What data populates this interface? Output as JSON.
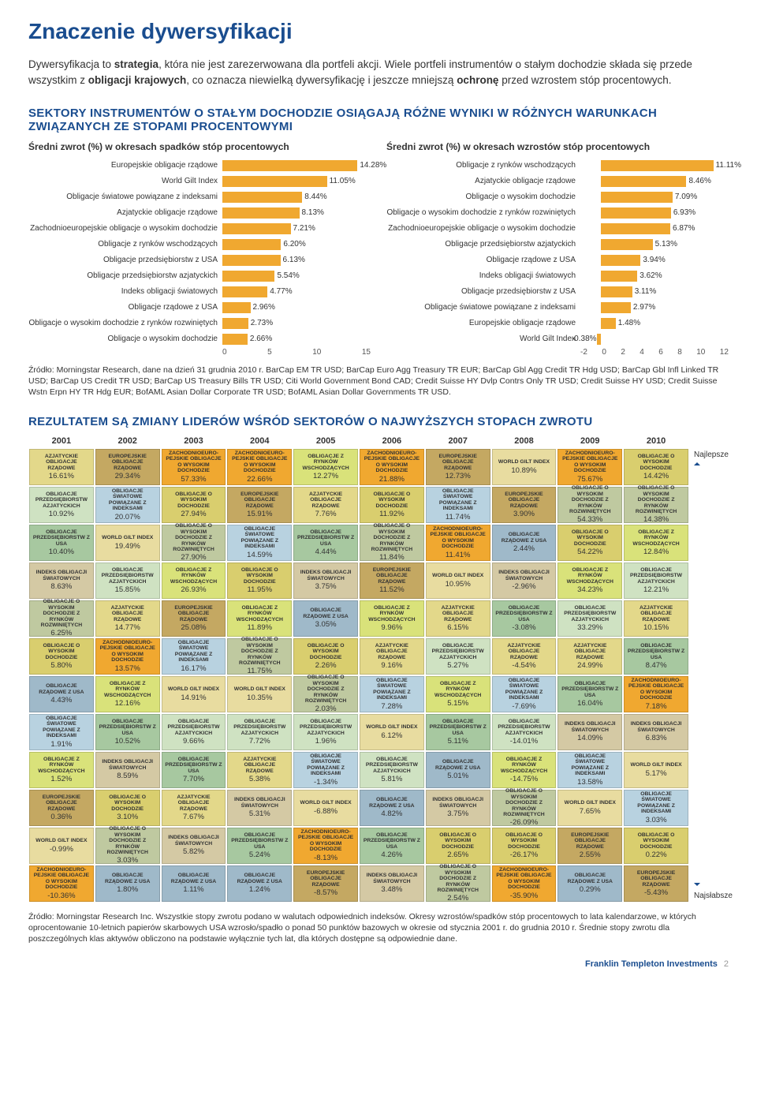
{
  "title": "Znaczenie dywersyfikacji",
  "intro_html": "Dywersyfikacja to <b>strategia</b>, która nie jest zarezerwowana dla portfeli akcji. Wiele portfeli instrumentów o stałym dochodzie składa się przede wszystkim z <b>obligacji krajowych</b>, co oznacza niewielką dywersyfikację i jeszcze mniejszą <b>ochronę</b> przed wzrostem stóp procentowych.",
  "subhead": "SEKTORY INSTRUMENTÓW O STAŁYM DOCHODZIE OSIĄGAJĄ RÓŻNE WYNIKI W RÓŻNYCH WARUNKACH ZWIĄZANYCH ZE STOPAMI PROCENTOWYMI",
  "bar_color": "#f0a830",
  "chart_a": {
    "title": "Średni zwrot (%) w okresach spadków stóp procentowych",
    "label_width": 246,
    "bar_area_width": 180,
    "xmin": 0,
    "xmax": 15,
    "ticks": [
      "0",
      "5",
      "10",
      "15"
    ],
    "items": [
      {
        "l": "Europejskie obligacje rządowe",
        "v": 14.28,
        "t": "14.28%"
      },
      {
        "l": "World Gilt Index",
        "v": 11.05,
        "t": "11.05%"
      },
      {
        "l": "Obligacje światowe powiązane z indeksami",
        "v": 8.44,
        "t": "8.44%"
      },
      {
        "l": "Azjatyckie obligacje rządowe",
        "v": 8.13,
        "t": "8.13%"
      },
      {
        "l": "Zachodnioeuropejskie obligacje o wysokim dochodzie",
        "v": 7.21,
        "t": "7.21%"
      },
      {
        "l": "Obligacje z rynków wschodzących",
        "v": 6.2,
        "t": "6.20%"
      },
      {
        "l": "Obligacje przedsiębiorstw z USA",
        "v": 6.13,
        "t": "6.13%"
      },
      {
        "l": "Obligacje przedsiębiorstw azjatyckich",
        "v": 5.54,
        "t": "5.54%"
      },
      {
        "l": "Indeks obligacji światowych",
        "v": 4.77,
        "t": "4.77%"
      },
      {
        "l": "Obligacje rządowe z USA",
        "v": 2.96,
        "t": "2.96%"
      },
      {
        "l": "Obligacje o wysokim dochodzie z rynków rozwiniętych",
        "v": 2.73,
        "t": "2.73%"
      },
      {
        "l": "Obligacje o wysokim dochodzie",
        "v": 2.66,
        "t": "2.66%"
      }
    ]
  },
  "chart_b": {
    "title": "Średni zwrot (%) w okresach wzrostów stóp procentowych",
    "label_width": 246,
    "bar_area_width": 180,
    "xmin": -2,
    "xmax": 12,
    "ticks": [
      "-2",
      "0",
      "2",
      "4",
      "6",
      "8",
      "10",
      "12"
    ],
    "items": [
      {
        "l": "Obligacje z rynków wschodzących",
        "v": 11.11,
        "t": "11.11%"
      },
      {
        "l": "Azjatyckie obligacje rządowe",
        "v": 8.46,
        "t": "8.46%"
      },
      {
        "l": "Obligacje o wysokim dochodzie",
        "v": 7.09,
        "t": "7.09%"
      },
      {
        "l": "Obligacje o wysokim dochodzie z rynków rozwiniętych",
        "v": 6.93,
        "t": "6.93%"
      },
      {
        "l": "Zachodnioeuropejskie obligacje o wysokim dochodzie",
        "v": 6.87,
        "t": "6.87%"
      },
      {
        "l": "Obligacje przedsiębiorstw azjatyckich",
        "v": 5.13,
        "t": "5.13%"
      },
      {
        "l": "Obligacje rządowe z USA",
        "v": 3.94,
        "t": "3.94%"
      },
      {
        "l": "Indeks obligacji światowych",
        "v": 3.62,
        "t": "3.62%"
      },
      {
        "l": "Obligacje przedsiębiorstw z USA",
        "v": 3.11,
        "t": "3.11%"
      },
      {
        "l": "Obligacje światowe powiązane z indeksami",
        "v": 2.97,
        "t": "2.97%"
      },
      {
        "l": "Europejskie obligacje rządowe",
        "v": 1.48,
        "t": "1.48%"
      },
      {
        "l": "World Gilt Index",
        "v": -0.38,
        "t": "-0.38%"
      }
    ]
  },
  "source1": "Źródło: Morningstar Research, dane na dzień 31 grudnia 2010 r. BarCap EM TR USD; BarCap Euro Agg Treasury TR EUR; BarCap Gbl Agg Credit TR Hdg USD; BarCap Gbl Infl Linked TR USD; BarCap US Credit TR USD; BarCap US Treasury Bills TR USD; Citi World Government Bond CAD; Credit Suisse HY Dvlp Contrs Only TR USD; Credit Suisse HY USD; Credit Suisse Wstn Erpn HY TR Hdg EUR; BofAML Asian Dollar Corporate TR USD; BofAML Asian Dollar Governments TR USD.",
  "subhead2": "REZULTATEM SĄ ZMIANY LIDERÓW WŚRÓD SEKTORÓW O NAJWYŻSZYCH STOPACH ZWROTU",
  "years": [
    "2001",
    "2002",
    "2003",
    "2004",
    "2005",
    "2006",
    "2007",
    "2008",
    "2009",
    "2010"
  ],
  "side_top": "Najlepsze",
  "side_bot": "Najsłabsze",
  "cat_colors": {
    "AZJ_RZAD": "#e3d88a",
    "EUR_RZAD": "#c4a862",
    "ZWE_HY": "#f0a830",
    "RYN_WSCH": "#d9e27a",
    "WGI": "#e8dca0",
    "HY": "#d9ce6e",
    "SW_R": "#e8e8e8",
    "PRZED_AZJ": "#cfe2c2",
    "SW_IDX": "#b8d2e0",
    "PRZED_USA": "#a7c8a0",
    "IDX_SW": "#d4c9a4",
    "HY_ROZW": "#bfc9a0",
    "RZAD_USA": "#9fb9c9",
    "AZJ_HY": "#e0d080"
  },
  "quilt": [
    [
      {
        "c": "AZJ_RZAD",
        "l": "AZJATYCKIE OBLIGACJE RZĄDOWE",
        "v": "16.61%"
      },
      {
        "c": "EUR_RZAD",
        "l": "EUROPEJSKIE OBLIGACJE RZĄDOWE",
        "v": "29.34%"
      },
      {
        "c": "ZWE_HY",
        "l": "ZACHODNIOEURO-PEJSKIE OBLIGACJE O WYSOKIM DOCHODZIE",
        "v": "57.33%"
      },
      {
        "c": "ZWE_HY",
        "l": "ZACHODNIOEURO-PEJSKIE OBLIGACJE O WYSOKIM DOCHODZIE",
        "v": "22.66%"
      },
      {
        "c": "RYN_WSCH",
        "l": "OBLIGACJE Z RYNKÓW WSCHODZĄCYCH",
        "v": "12.27%"
      },
      {
        "c": "ZWE_HY",
        "l": "ZACHODNIOEURO-PEJSKIE OBLIGACJE O WYSOKIM DOCHODZIE",
        "v": "21.88%"
      },
      {
        "c": "EUR_RZAD",
        "l": "EUROPEJSKIE OBLIGACJE RZĄDOWE",
        "v": "12.73%"
      },
      {
        "c": "WGI",
        "l": "WORLD GILT INDEX",
        "v": "10.89%"
      },
      {
        "c": "ZWE_HY",
        "l": "ZACHODNIOEURO-PEJSKIE OBLIGACJE O WYSOKIM DOCHODZIE",
        "v": "75.67%"
      },
      {
        "c": "HY",
        "l": "OBLIGACJE O WYSOKIM DOCHODZIE",
        "v": "14.42%"
      }
    ],
    [
      {
        "c": "PRZED_AZJ",
        "l": "OBLIGACJE PRZEDSIĘBIORSTW AZJATYCKICH",
        "v": "10.92%"
      },
      {
        "c": "SW_IDX",
        "l": "OBLIGACJE ŚWIATOWE POWIĄZANE Z INDEKSAMI",
        "v": "20.07%"
      },
      {
        "c": "HY",
        "l": "OBLIGACJE O WYSOKIM DOCHODZIE",
        "v": "27.94%"
      },
      {
        "c": "EUR_RZAD",
        "l": "EUROPEJSKIE OBLIGACJE RZĄDOWE",
        "v": "15.91%"
      },
      {
        "c": "AZJ_RZAD",
        "l": "AZJATYCKIE OBLIGACJE RZĄDOWE",
        "v": "7.76%"
      },
      {
        "c": "HY",
        "l": "OBLIGACJE O WYSOKIM DOCHODZIE",
        "v": "11.92%"
      },
      {
        "c": "SW_IDX",
        "l": "OBLIGACJE ŚWIATOWE POWIĄZANE Z INDEKSAMI",
        "v": "11.74%"
      },
      {
        "c": "EUR_RZAD",
        "l": "EUROPEJSKIE OBLIGACJE RZĄDOWE",
        "v": "3.90%"
      },
      {
        "c": "HY_ROZW",
        "l": "OBLIGACJE O WYSOKIM DOCHODZIE Z RYNKÓW ROZWINIĘTYCH",
        "v": "54.33%"
      },
      {
        "c": "HY_ROZW",
        "l": "OBLIGACJE O WYSOKIM DOCHODZIE Z RYNKÓW ROZWINIĘTYCH",
        "v": "14.38%"
      }
    ],
    [
      {
        "c": "PRZED_USA",
        "l": "OBLIGACJE PRZEDSIĘBIORSTW Z USA",
        "v": "10.40%"
      },
      {
        "c": "WGI",
        "l": "WORLD GILT INDEX",
        "v": "19.49%"
      },
      {
        "c": "HY_ROZW",
        "l": "OBLIGACJE O WYSOKIM DOCHODZIE Z RYNKÓW ROZWINIĘTYCH",
        "v": "27.90%"
      },
      {
        "c": "SW_IDX",
        "l": "OBLIGACJE ŚWIATOWE POWIĄZANE Z INDEKSAMI",
        "v": "14.59%"
      },
      {
        "c": "PRZED_USA",
        "l": "OBLIGACJE PRZEDSIĘBIORSTW Z USA",
        "v": "4.44%"
      },
      {
        "c": "HY_ROZW",
        "l": "OBLIGACJE O WYSOKIM DOCHODZIE Z RYNKÓW ROZWINIĘTYCH",
        "v": "11.84%"
      },
      {
        "c": "ZWE_HY",
        "l": "ZACHODNIOEURO-PEJSKIE OBLIGACJE O WYSOKIM DOCHODZIE",
        "v": "11.41%"
      },
      {
        "c": "RZAD_USA",
        "l": "OBLIGACJE RZĄDOWE Z USA",
        "v": "2.44%"
      },
      {
        "c": "HY",
        "l": "OBLIGACJE O WYSOKIM DOCHODZIE",
        "v": "54.22%"
      },
      {
        "c": "RYN_WSCH",
        "l": "OBLIGACJE Z RYNKÓW WSCHODZĄCYCH",
        "v": "12.84%"
      }
    ],
    [
      {
        "c": "IDX_SW",
        "l": "INDEKS OBLIGACJI ŚWIATOWYCH",
        "v": "8.63%"
      },
      {
        "c": "PRZED_AZJ",
        "l": "OBLIGACJE PRZEDSIĘBIORSTW AZJATYCKICH",
        "v": "15.85%"
      },
      {
        "c": "RYN_WSCH",
        "l": "OBLIGACJE Z RYNKÓW WSCHODZĄCYCH",
        "v": "26.93%"
      },
      {
        "c": "HY",
        "l": "OBLIGACJE O WYSOKIM DOCHODZIE",
        "v": "11.95%"
      },
      {
        "c": "IDX_SW",
        "l": "INDEKS OBLIGACJI ŚWIATOWYCH",
        "v": "3.75%"
      },
      {
        "c": "EUR_RZAD",
        "l": "EUROPEJSKIE OBLIGACJE RZĄDOWE",
        "v": "11.52%"
      },
      {
        "c": "WGI",
        "l": "WORLD GILT INDEX",
        "v": "10.95%"
      },
      {
        "c": "IDX_SW",
        "l": "INDEKS OBLIGACJI ŚWIATOWYCH",
        "v": "-2.96%"
      },
      {
        "c": "RYN_WSCH",
        "l": "OBLIGACJE Z RYNKÓW WSCHODZĄCYCH",
        "v": "34.23%"
      },
      {
        "c": "PRZED_AZJ",
        "l": "OBLIGACJE PRZEDSIĘBIORSTW AZJATYCKICH",
        "v": "12.21%"
      }
    ],
    [
      {
        "c": "HY_ROZW",
        "l": "OBLIGACJE O WYSOKIM DOCHODZIE Z RYNKÓW ROZWINIĘTYCH",
        "v": "6.25%"
      },
      {
        "c": "AZJ_RZAD",
        "l": "AZJATYCKIE OBLIGACJE RZĄDOWE",
        "v": "14.77%"
      },
      {
        "c": "EUR_RZAD",
        "l": "EUROPEJSKIE OBLIGACJE RZĄDOWE",
        "v": "25.08%"
      },
      {
        "c": "RYN_WSCH",
        "l": "OBLIGACJE Z RYNKÓW WSCHODZĄCYCH",
        "v": "11.89%"
      },
      {
        "c": "RZAD_USA",
        "l": "OBLIGACJE RZĄDOWE Z USA",
        "v": "3.05%"
      },
      {
        "c": "RYN_WSCH",
        "l": "OBLIGACJE Z RYNKÓW WSCHODZĄCYCH",
        "v": "9.96%"
      },
      {
        "c": "AZJ_RZAD",
        "l": "AZJATYCKIE OBLIGACJE RZĄDOWE",
        "v": "6.15%"
      },
      {
        "c": "PRZED_USA",
        "l": "OBLIGACJE PRZEDSIĘBIORSTW Z USA",
        "v": "-3.08%"
      },
      {
        "c": "PRZED_AZJ",
        "l": "OBLIGACJE PRZEDSIĘBIORSTW AZJATYCKICH",
        "v": "33.29%"
      },
      {
        "c": "AZJ_RZAD",
        "l": "AZJATYCKIE OBLIGACJE RZĄDOWE",
        "v": "10.15%"
      }
    ],
    [
      {
        "c": "HY",
        "l": "OBLIGACJE O WYSOKIM DOCHODZIE",
        "v": "5.80%"
      },
      {
        "c": "ZWE_HY",
        "l": "ZACHODNIOEURO-PEJSKIE OBLIGACJE O WYSOKIM DOCHODZIE",
        "v": "13.57%"
      },
      {
        "c": "SW_IDX",
        "l": "OBLIGACJE ŚWIATOWE POWIĄZANE Z INDEKSAMI",
        "v": "16.17%"
      },
      {
        "c": "HY_ROZW",
        "l": "OBLIGACJE O WYSOKIM DOCHODZIE Z RYNKÓW ROZWINIĘTYCH",
        "v": "11.75%"
      },
      {
        "c": "HY",
        "l": "OBLIGACJE O WYSOKIM DOCHODZIE",
        "v": "2.26%"
      },
      {
        "c": "AZJ_RZAD",
        "l": "AZJATYCKIE OBLIGACJE RZĄDOWE",
        "v": "9.16%"
      },
      {
        "c": "PRZED_AZJ",
        "l": "OBLIGACJE PRZEDSIĘBIORSTW AZJATYCKICH",
        "v": "5.27%"
      },
      {
        "c": "AZJ_RZAD",
        "l": "AZJATYCKIE OBLIGACJE RZĄDOWE",
        "v": "-4.54%"
      },
      {
        "c": "AZJ_RZAD",
        "l": "AZJATYCKIE OBLIGACJE RZĄDOWE",
        "v": "24.99%"
      },
      {
        "c": "PRZED_USA",
        "l": "OBLIGACJE PRZEDSIĘBIORSTW Z USA",
        "v": "8.47%"
      }
    ],
    [
      {
        "c": "RZAD_USA",
        "l": "OBLIGACJE RZĄDOWE Z USA",
        "v": "4.43%"
      },
      {
        "c": "RYN_WSCH",
        "l": "OBLIGACJE Z RYNKÓW WSCHODZĄCYCH",
        "v": "12.16%"
      },
      {
        "c": "WGI",
        "l": "WORLD GILT INDEX",
        "v": "14.91%"
      },
      {
        "c": "WGI",
        "l": "WORLD GILT INDEX",
        "v": "10.35%"
      },
      {
        "c": "HY_ROZW",
        "l": "OBLIGACJE O WYSOKIM DOCHODZIE Z RYNKÓW ROZWINIĘTYCH",
        "v": "2.03%"
      },
      {
        "c": "SW_IDX",
        "l": "OBLIGACJE ŚWIATOWE POWIĄZANE Z INDEKSAMI",
        "v": "7.28%"
      },
      {
        "c": "RYN_WSCH",
        "l": "OBLIGACJE Z RYNKÓW WSCHODZĄCYCH",
        "v": "5.15%"
      },
      {
        "c": "SW_IDX",
        "l": "OBLIGACJE ŚWIATOWE POWIĄZANE Z INDEKSAMI",
        "v": "-7.69%"
      },
      {
        "c": "PRZED_USA",
        "l": "OBLIGACJE PRZEDSIĘBIORSTW Z USA",
        "v": "16.04%"
      },
      {
        "c": "ZWE_HY",
        "l": "ZACHODNIOEURO-PEJSKIE OBLIGACJE O WYSOKIM DOCHODZIE",
        "v": "7.18%"
      }
    ],
    [
      {
        "c": "SW_IDX",
        "l": "OBLIGACJE ŚWIATOWE POWIĄZANE Z INDEKSAMI",
        "v": "1.91%"
      },
      {
        "c": "PRZED_USA",
        "l": "OBLIGACJE PRZEDSIĘBIORSTW Z USA",
        "v": "10.52%"
      },
      {
        "c": "PRZED_AZJ",
        "l": "OBLIGACJE PRZEDSIĘBIORSTW AZJATYCKICH",
        "v": "9.66%"
      },
      {
        "c": "PRZED_AZJ",
        "l": "OBLIGACJE PRZEDSIĘBIORSTW AZJATYCKICH",
        "v": "7.72%"
      },
      {
        "c": "PRZED_AZJ",
        "l": "OBLIGACJE PRZEDSIĘBIORSTW AZJATYCKICH",
        "v": "1.96%"
      },
      {
        "c": "WGI",
        "l": "WORLD GILT INDEX",
        "v": "6.12%"
      },
      {
        "c": "PRZED_USA",
        "l": "OBLIGACJE PRZEDSIĘBIORSTW Z USA",
        "v": "5.11%"
      },
      {
        "c": "PRZED_AZJ",
        "l": "OBLIGACJE PRZEDSIĘBIORSTW AZJATYCKICH",
        "v": "-14.01%"
      },
      {
        "c": "IDX_SW",
        "l": "INDEKS OBLIGACJI ŚWIATOWYCH",
        "v": "14.09%"
      },
      {
        "c": "IDX_SW",
        "l": "INDEKS OBLIGACJI ŚWIATOWYCH",
        "v": "6.83%"
      }
    ],
    [
      {
        "c": "RYN_WSCH",
        "l": "OBLIGACJE Z RYNKÓW WSCHODZĄCYCH",
        "v": "1.52%"
      },
      {
        "c": "IDX_SW",
        "l": "INDEKS OBLIGACJI ŚWIATOWYCH",
        "v": "8.59%"
      },
      {
        "c": "PRZED_USA",
        "l": "OBLIGACJE PRZEDSIĘBIORSTW Z USA",
        "v": "7.70%"
      },
      {
        "c": "AZJ_RZAD",
        "l": "AZJATYCKIE OBLIGACJE RZĄDOWE",
        "v": "5.38%"
      },
      {
        "c": "SW_IDX",
        "l": "OBLIGACJE ŚWIATOWE POWIĄZANE Z INDEKSAMI",
        "v": "-1.34%"
      },
      {
        "c": "PRZED_AZJ",
        "l": "OBLIGACJE PRZEDSIĘBIORSTW AZJATYCKICH",
        "v": "5.81%"
      },
      {
        "c": "RZAD_USA",
        "l": "OBLIGACJE RZĄDOWE Z USA",
        "v": "5.01%"
      },
      {
        "c": "RYN_WSCH",
        "l": "OBLIGACJE Z RYNKÓW WSCHODZĄCYCH",
        "v": "-14.75%"
      },
      {
        "c": "SW_IDX",
        "l": "OBLIGACJE ŚWIATOWE POWIĄZANE Z INDEKSAMI",
        "v": "13.58%"
      },
      {
        "c": "WGI",
        "l": "WORLD GILT INDEX",
        "v": "5.17%"
      }
    ],
    [
      {
        "c": "EUR_RZAD",
        "l": "EUROPEJSKIE OBLIGACJE RZĄDOWE",
        "v": "0.36%"
      },
      {
        "c": "HY",
        "l": "OBLIGACJE O WYSOKIM DOCHODZIE",
        "v": "3.10%"
      },
      {
        "c": "AZJ_RZAD",
        "l": "AZJATYCKIE OBLIGACJE RZĄDOWE",
        "v": "7.67%"
      },
      {
        "c": "IDX_SW",
        "l": "INDEKS OBLIGACJI ŚWIATOWYCH",
        "v": "5.31%"
      },
      {
        "c": "WGI",
        "l": "WORLD GILT INDEX",
        "v": "-6.88%"
      },
      {
        "c": "RZAD_USA",
        "l": "OBLIGACJE RZĄDOWE Z USA",
        "v": "4.82%"
      },
      {
        "c": "IDX_SW",
        "l": "INDEKS OBLIGACJI ŚWIATOWYCH",
        "v": "3.75%"
      },
      {
        "c": "HY_ROZW",
        "l": "OBLIGACJE O WYSOKIM DOCHODZIE Z RYNKÓW ROZWINIĘTYCH",
        "v": "-26.09%"
      },
      {
        "c": "WGI",
        "l": "WORLD GILT INDEX",
        "v": "7.65%"
      },
      {
        "c": "SW_IDX",
        "l": "OBLIGACJE ŚWIATOWE POWIĄZANE Z INDEKSAMI",
        "v": "3.03%"
      }
    ],
    [
      {
        "c": "WGI",
        "l": "WORLD GILT INDEX",
        "v": "-0.99%"
      },
      {
        "c": "HY_ROZW",
        "l": "OBLIGACJE O WYSOKIM DOCHODZIE Z RYNKÓW ROZWINIĘTYCH",
        "v": "3.03%"
      },
      {
        "c": "IDX_SW",
        "l": "INDEKS OBLIGACJI ŚWIATOWYCH",
        "v": "5.82%"
      },
      {
        "c": "PRZED_USA",
        "l": "OBLIGACJE PRZEDSIĘBIORSTW Z USA",
        "v": "5.24%"
      },
      {
        "c": "ZWE_HY",
        "l": "ZACHODNIOEURO-PEJSKIE OBLIGACJE O WYSOKIM DOCHODZIE",
        "v": "-8.13%"
      },
      {
        "c": "PRZED_USA",
        "l": "OBLIGACJE PRZEDSIĘBIORSTW Z USA",
        "v": "4.26%"
      },
      {
        "c": "HY",
        "l": "OBLIGACJE O WYSOKIM DOCHODZIE",
        "v": "2.65%"
      },
      {
        "c": "HY",
        "l": "OBLIGACJE O WYSOKIM DOCHODZIE",
        "v": "-26.17%"
      },
      {
        "c": "EUR_RZAD",
        "l": "EUROPEJSKIE OBLIGACJE RZĄDOWE",
        "v": "2.55%"
      },
      {
        "c": "HY",
        "l": "OBLIGACJE O WYSOKIM DOCHODZIE",
        "v": "0.22%"
      }
    ],
    [
      {
        "c": "ZWE_HY",
        "l": "ZACHODNIOEURO-PEJSKIE OBLIGACJE O WYSOKIM DOCHODZIE",
        "v": "-10.36%"
      },
      {
        "c": "RZAD_USA",
        "l": "OBLIGACJE RZĄDOWE Z USA",
        "v": "1.80%"
      },
      {
        "c": "RZAD_USA",
        "l": "OBLIGACJE RZĄDOWE Z USA",
        "v": "1.11%"
      },
      {
        "c": "RZAD_USA",
        "l": "OBLIGACJE RZĄDOWE Z USA",
        "v": "1.24%"
      },
      {
        "c": "EUR_RZAD",
        "l": "EUROPEJSKIE OBLIGACJE RZĄDOWE",
        "v": "-8.57%"
      },
      {
        "c": "IDX_SW",
        "l": "INDEKS OBLIGACJI ŚWIATOWYCH",
        "v": "3.48%"
      },
      {
        "c": "HY_ROZW",
        "l": "OBLIGACJE O WYSOKIM DOCHODZIE Z RYNKÓW ROZWINIĘTYCH",
        "v": "2.54%"
      },
      {
        "c": "ZWE_HY",
        "l": "ZACHODNIOEURO-PEJSKIE OBLIGACJE O WYSOKIM DOCHODZIE",
        "v": "-35.90%"
      },
      {
        "c": "RZAD_USA",
        "l": "OBLIGACJE RZĄDOWE Z USA",
        "v": "0.29%"
      },
      {
        "c": "EUR_RZAD",
        "l": "EUROPEJSKIE OBLIGACJE RZĄDOWE",
        "v": "-5.43%"
      }
    ]
  ],
  "source2": "Źródło: Morningstar Research Inc. Wszystkie stopy zwrotu podano w walutach odpowiednich indeksów. Okresy wzrostów/spadków stóp procentowych to lata kalendarzowe, w których oprocentowanie 10-letnich papierów skarbowych USA wzrosło/spadło o ponad 50 punktów bazowych w okresie od stycznia 2001 r. do grudnia 2010 r. Średnie stopy zwrotu dla poszczególnych klas aktywów obliczono na podstawie wyłącznie tych lat, dla których dostępne są odpowiednie dane.",
  "footer_brand": "Franklin Templeton Investments",
  "footer_page": "2"
}
